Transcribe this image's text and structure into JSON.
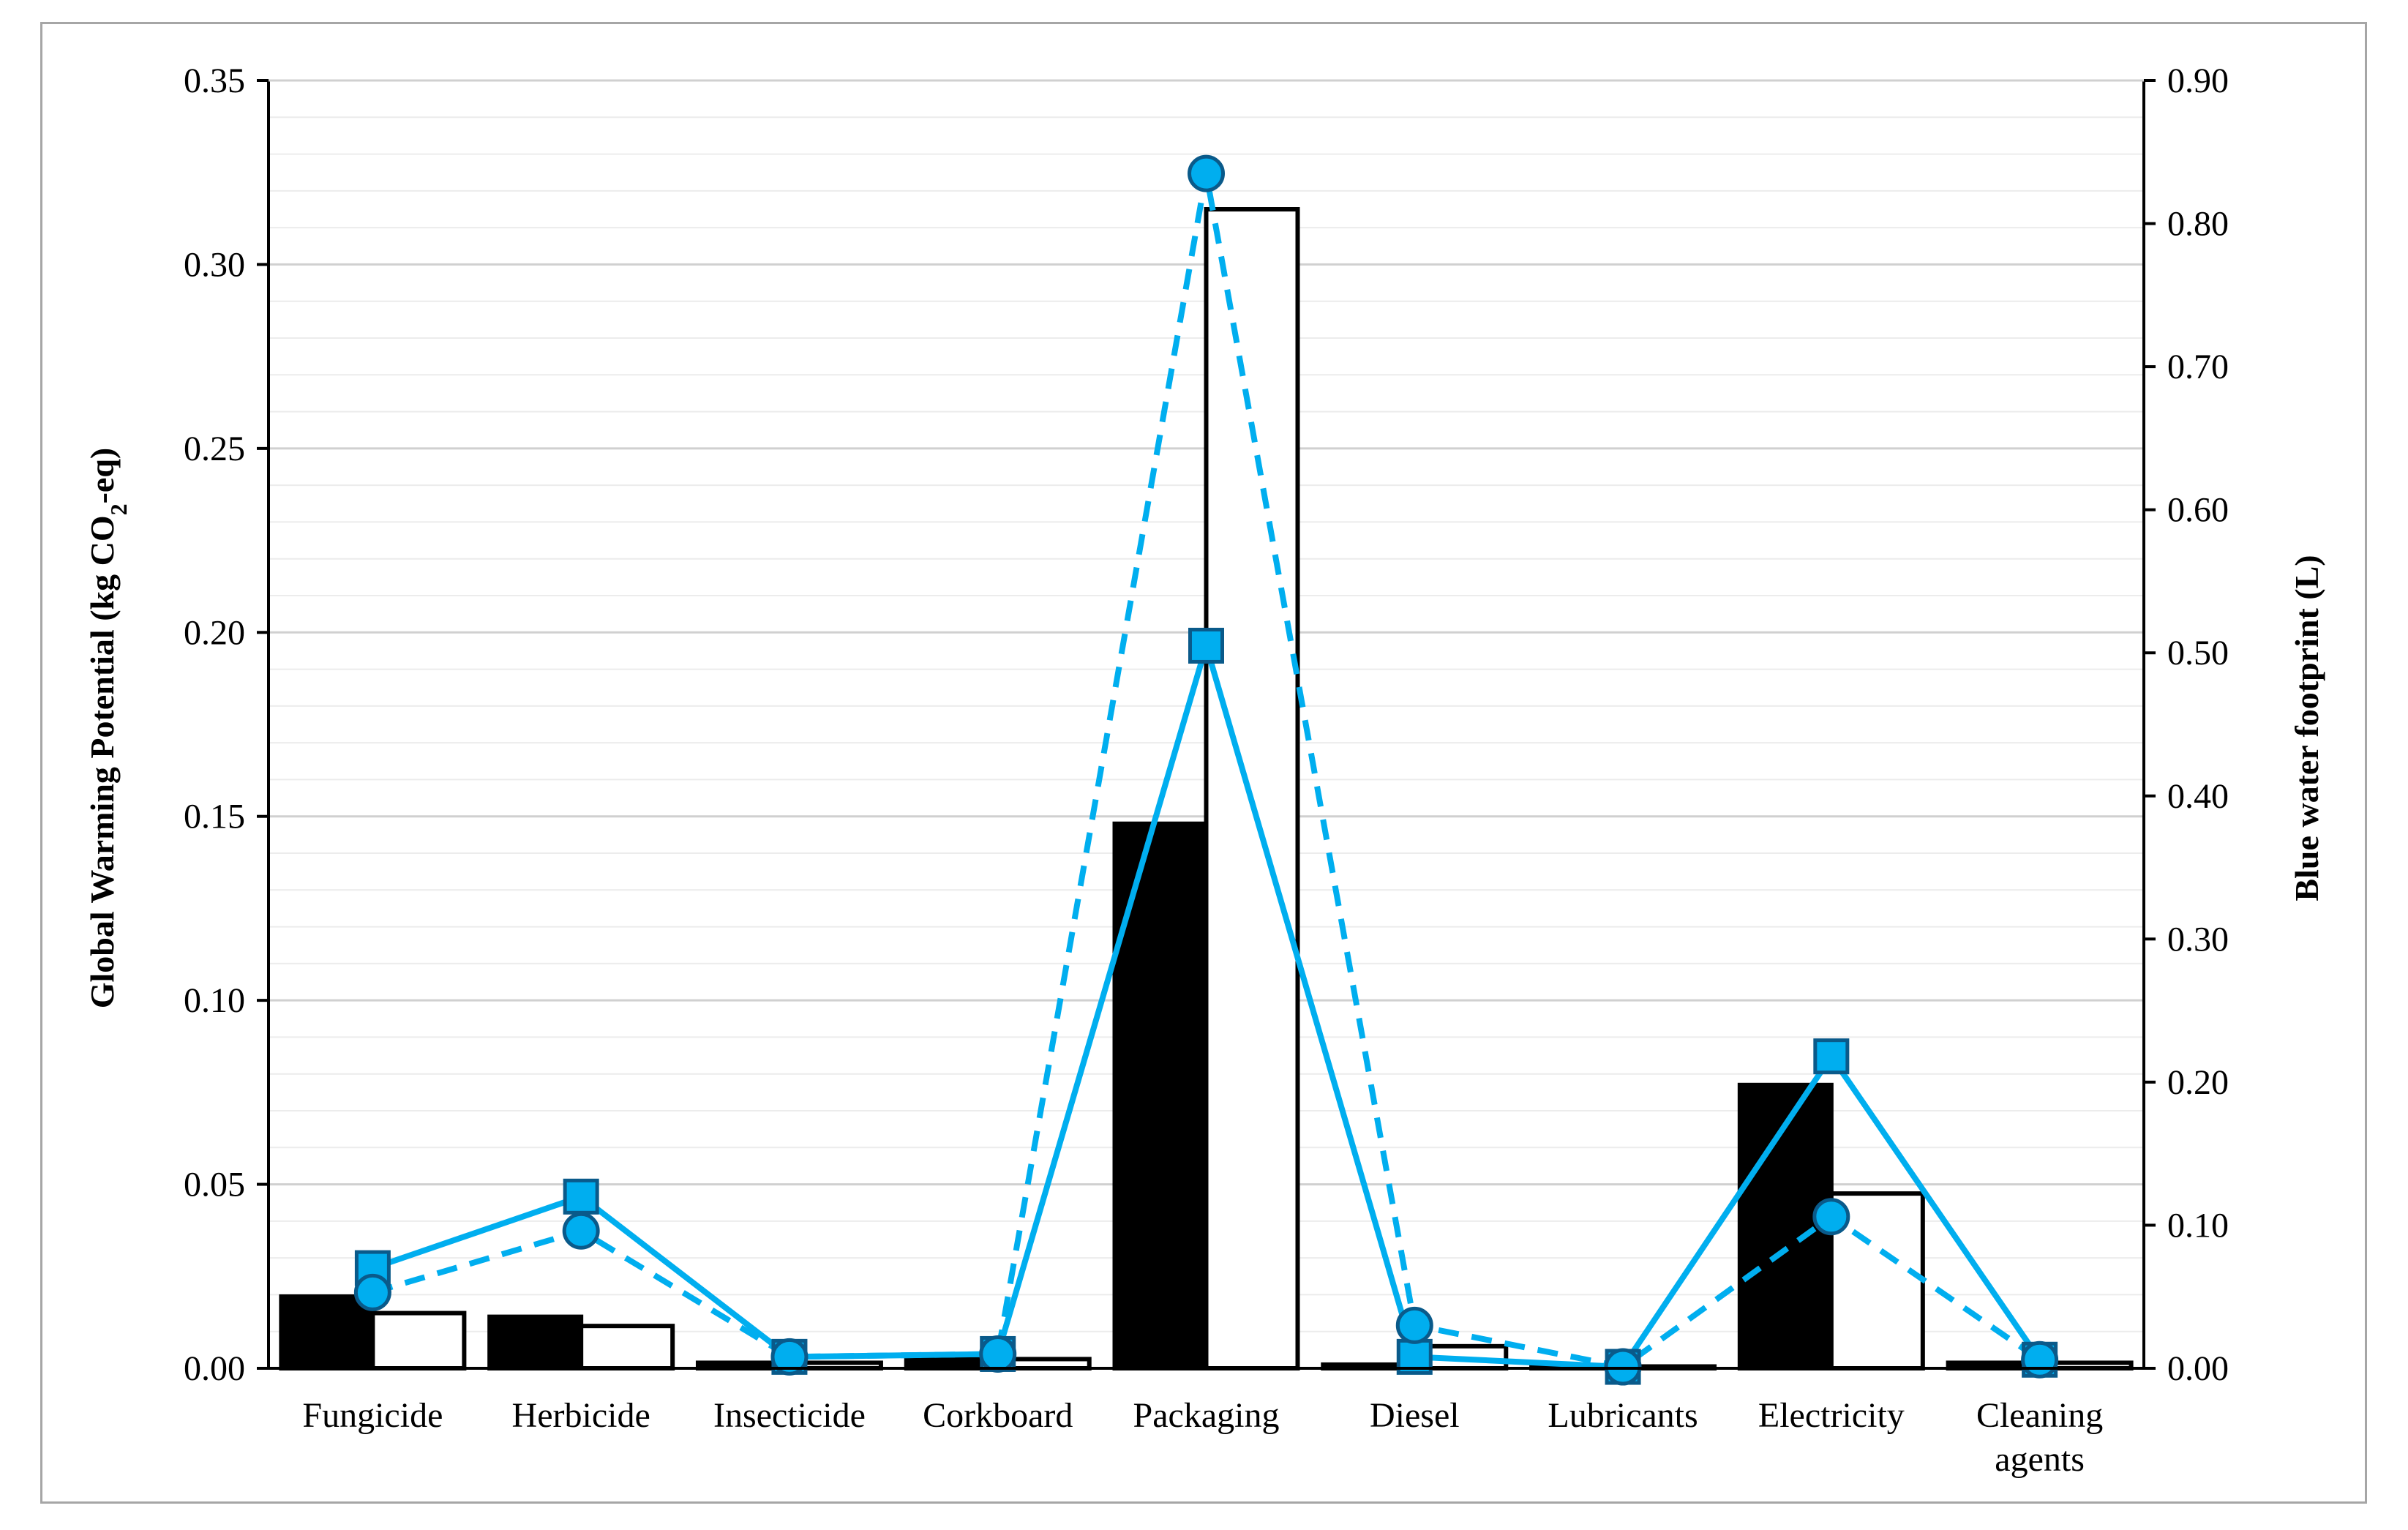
{
  "chart_data": {
    "type": "bar",
    "categories": [
      "Fungicide",
      "Herbicide",
      "Insecticide",
      "Corkboard",
      "Packaging",
      "Diesel",
      "Lubricants",
      "Electricity",
      "Cleaning agents"
    ],
    "y_left": {
      "label": "Global  Warming Potential  (kg CO",
      "label_sub": "2",
      "label_suffix": "-eq)",
      "ylim": [
        0,
        0.35
      ],
      "ticks": [
        "0.00",
        "0.05",
        "0.10",
        "0.15",
        "0.20",
        "0.25",
        "0.30",
        "0.35"
      ]
    },
    "y_right": {
      "label": "Blue water  footprint  (L)",
      "ylim": [
        0,
        0.9
      ],
      "ticks": [
        "0.00",
        "0.10",
        "0.20",
        "0.30",
        "0.40",
        "0.50",
        "0.60",
        "0.70",
        "0.80",
        "0.90"
      ]
    },
    "bar_series": [
      {
        "axis": "left",
        "fill": "#000000",
        "values": [
          0.0195,
          0.014,
          0.0015,
          0.0025,
          0.148,
          0.001,
          0.0005,
          0.077,
          0.0015
        ]
      },
      {
        "axis": "left",
        "fill": "#ffffff",
        "values": [
          0.015,
          0.0115,
          0.0015,
          0.0025,
          0.315,
          0.006,
          0.0005,
          0.0475,
          0.0015
        ]
      }
    ],
    "line_series": [
      {
        "axis": "right",
        "style": "solid",
        "marker": "square",
        "color": "#00aeef",
        "values": [
          0.07,
          0.12,
          0.008,
          0.01,
          0.505,
          0.008,
          0.001,
          0.218,
          0.006
        ]
      },
      {
        "axis": "right",
        "style": "dashed",
        "marker": "circle",
        "color": "#00aeef",
        "values": [
          0.053,
          0.096,
          0.008,
          0.01,
          0.835,
          0.03,
          0.001,
          0.106,
          0.006
        ]
      }
    ],
    "grid": "horizontal",
    "legend": "none"
  }
}
